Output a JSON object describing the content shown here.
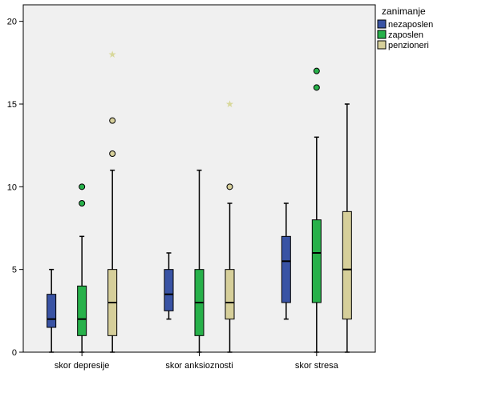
{
  "chart_data": {
    "type": "boxplot",
    "categories": [
      "skor depresije",
      "skor anksioznosti",
      "skor stresa"
    ],
    "ylim": [
      0,
      21
    ],
    "yticks": [
      0,
      5,
      10,
      15,
      20
    ],
    "grid": false,
    "legend": {
      "title": "zanimanje",
      "placement": "right",
      "entries": [
        "nezaposlen",
        "zaposlen",
        "penzioneri"
      ]
    },
    "colors": {
      "nezaposlen": "#3953a4",
      "zaposlen": "#27b14a",
      "penzioneri": "#d6cf9a",
      "plot_background": "#f0f0f0",
      "extreme_star": "#d8d89a"
    },
    "series": [
      {
        "name": "nezaposlen",
        "boxes": [
          {
            "category": "skor depresije",
            "min": 0,
            "q1": 1.5,
            "median": 2,
            "q3": 3.5,
            "max": 5,
            "outliers": [],
            "extremes": []
          },
          {
            "category": "skor anksioznosti",
            "min": 2,
            "q1": 2.5,
            "median": 3.5,
            "q3": 5,
            "max": 6,
            "outliers": [],
            "extremes": []
          },
          {
            "category": "skor stresa",
            "min": 2,
            "q1": 3,
            "median": 5.5,
            "q3": 7,
            "max": 9,
            "outliers": [],
            "extremes": []
          }
        ]
      },
      {
        "name": "zaposlen",
        "boxes": [
          {
            "category": "skor depresije",
            "min": 0,
            "q1": 1,
            "median": 2,
            "q3": 4,
            "max": 7,
            "outliers": [
              9,
              10
            ],
            "extremes": []
          },
          {
            "category": "skor anksioznosti",
            "min": 0,
            "q1": 1,
            "median": 3,
            "q3": 5,
            "max": 11,
            "outliers": [],
            "extremes": []
          },
          {
            "category": "skor stresa",
            "min": 0,
            "q1": 3,
            "median": 6,
            "q3": 8,
            "max": 13,
            "outliers": [
              16,
              17
            ],
            "extremes": []
          }
        ]
      },
      {
        "name": "penzioneri",
        "boxes": [
          {
            "category": "skor depresije",
            "min": 0,
            "q1": 1,
            "median": 3,
            "q3": 5,
            "max": 11,
            "outliers": [
              12,
              14
            ],
            "extremes": [
              18
            ]
          },
          {
            "category": "skor anksioznosti",
            "min": 0,
            "q1": 2,
            "median": 3,
            "q3": 5,
            "max": 9,
            "outliers": [
              10
            ],
            "extremes": [
              15
            ]
          },
          {
            "category": "skor stresa",
            "min": 0,
            "q1": 2,
            "median": 5,
            "q3": 8.5,
            "max": 15,
            "outliers": [],
            "extremes": []
          }
        ]
      }
    ]
  }
}
